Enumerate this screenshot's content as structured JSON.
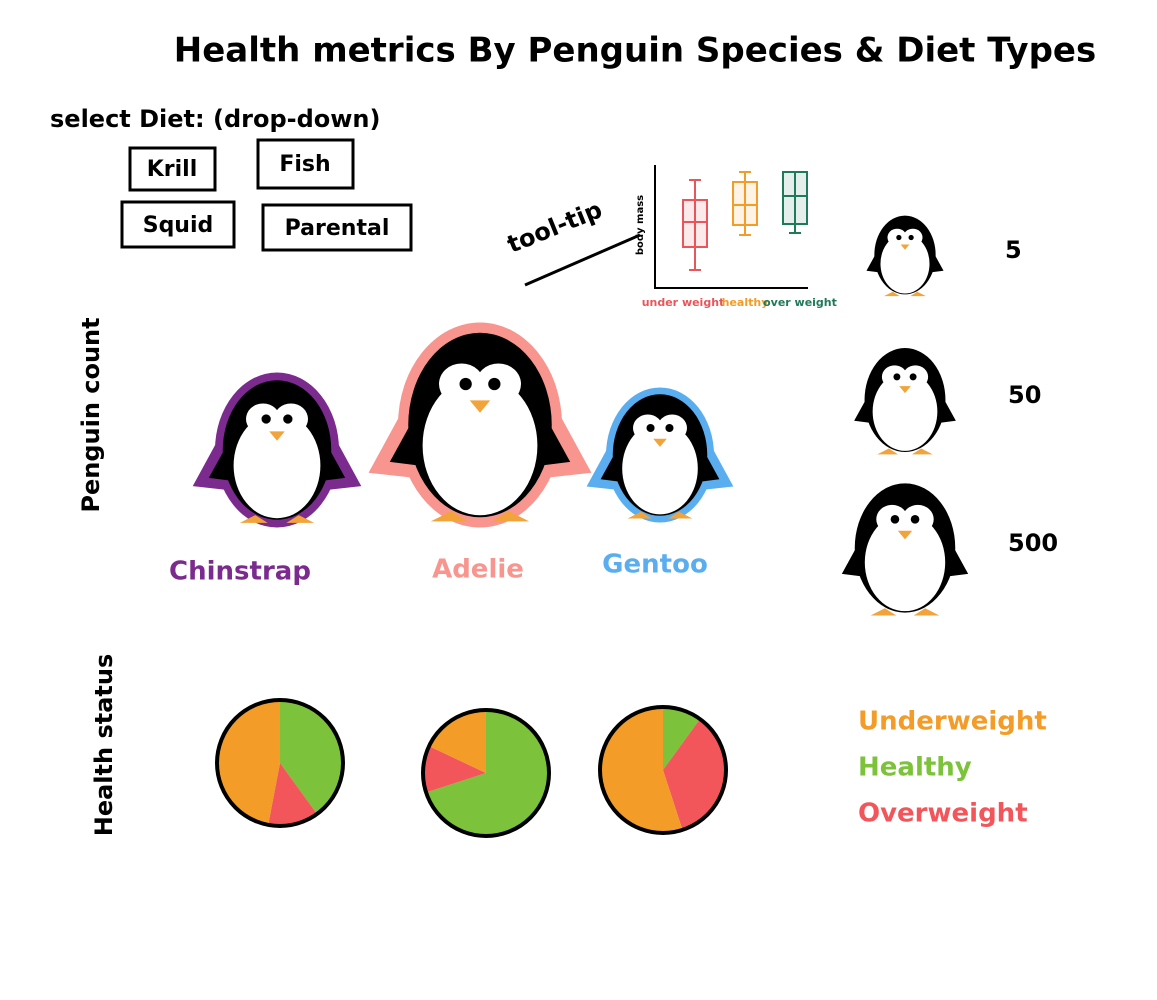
{
  "header": {
    "title": "Health metrics By Penguin Species & Diet Types"
  },
  "diet_selector": {
    "label": "select Diet: (drop-down)",
    "options": [
      "Krill",
      "Fish",
      "Squid",
      "Parental"
    ]
  },
  "tooltip": {
    "label": "tool-tip",
    "y_axis": "body mass",
    "categories": [
      "under weight",
      "healthy",
      "over weight"
    ],
    "colors": [
      "#e8555a",
      "#f39c27",
      "#1f7a5a"
    ]
  },
  "count_panel": {
    "axis_label": "Penguin count",
    "species": [
      {
        "name": "Chinstrap",
        "color": "#7b2a8e"
      },
      {
        "name": "Adelie",
        "color": "#f7958e"
      },
      {
        "name": "Gentoo",
        "color": "#5aaef0"
      }
    ]
  },
  "size_legend": {
    "values": [
      5,
      50,
      500
    ]
  },
  "health_panel": {
    "axis_label": "Health status",
    "legend": [
      {
        "name": "Underweight",
        "color": "#f39c27"
      },
      {
        "name": "Healthy",
        "color": "#7cc23a"
      },
      {
        "name": "Overweight",
        "color": "#f2555a"
      }
    ],
    "shares": [
      [
        47,
        40,
        13
      ],
      [
        18,
        70,
        12
      ],
      [
        55,
        10,
        35
      ]
    ]
  }
}
